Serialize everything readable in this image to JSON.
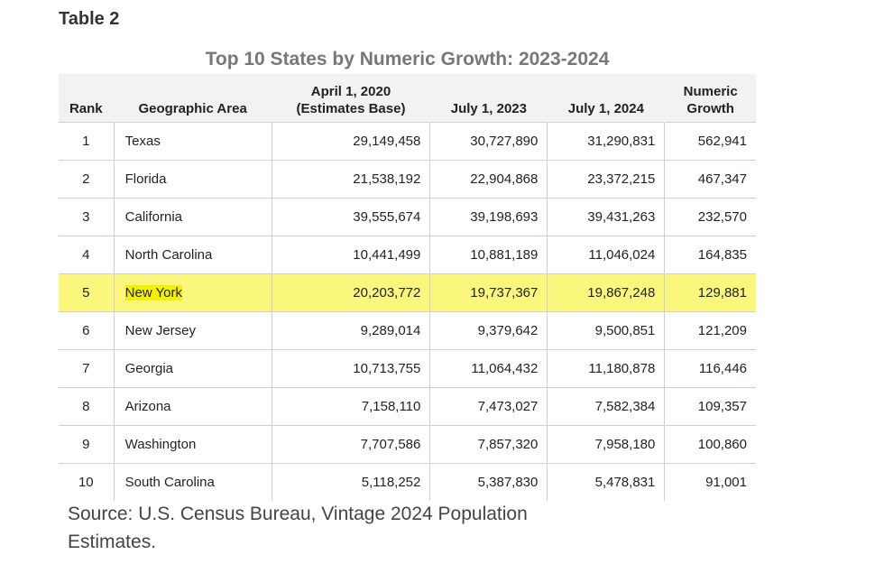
{
  "label": "Table 2",
  "table": {
    "title": "Top 10 States by Numeric Growth: 2023-2024",
    "header": [
      [
        "Rank"
      ],
      [
        "Geographic Area"
      ],
      [
        "April 1, 2020",
        "(Estimates Base)"
      ],
      [
        "July 1, 2023"
      ],
      [
        "July 1, 2024"
      ],
      [
        "Numeric",
        "Growth"
      ]
    ],
    "rows": [
      [
        "1",
        "Texas",
        "29,149,458",
        "30,727,890",
        "31,290,831",
        "562,941"
      ],
      [
        "2",
        "Florida",
        "21,538,192",
        "22,904,868",
        "23,372,215",
        "467,347"
      ],
      [
        "3",
        "California",
        "39,555,674",
        "39,198,693",
        "39,431,263",
        "232,570"
      ],
      [
        "4",
        "North Carolina",
        "10,441,499",
        "10,881,189",
        "11,046,024",
        "164,835"
      ],
      [
        "5",
        "New York",
        "20,203,772",
        "19,737,367",
        "19,867,248",
        "129,881"
      ],
      [
        "6",
        "New Jersey",
        "9,289,014",
        "9,379,642",
        "9,500,851",
        "121,209"
      ],
      [
        "7",
        "Georgia",
        "10,713,755",
        "11,064,432",
        "11,180,878",
        "116,446"
      ],
      [
        "8",
        "Arizona",
        "7,158,110",
        "7,473,027",
        "7,582,384",
        "109,357"
      ],
      [
        "9",
        "Washington",
        "7,707,586",
        "7,857,320",
        "7,958,180",
        "100,860"
      ],
      [
        "10",
        "South Carolina",
        "5,118,252",
        "5,387,830",
        "5,478,831",
        "91,001"
      ]
    ],
    "highlighted_row": 4,
    "highlight_color": "#faf77c"
  },
  "source": "Source: U.S. Census Bureau, Vintage 2024 Population Estimates."
}
